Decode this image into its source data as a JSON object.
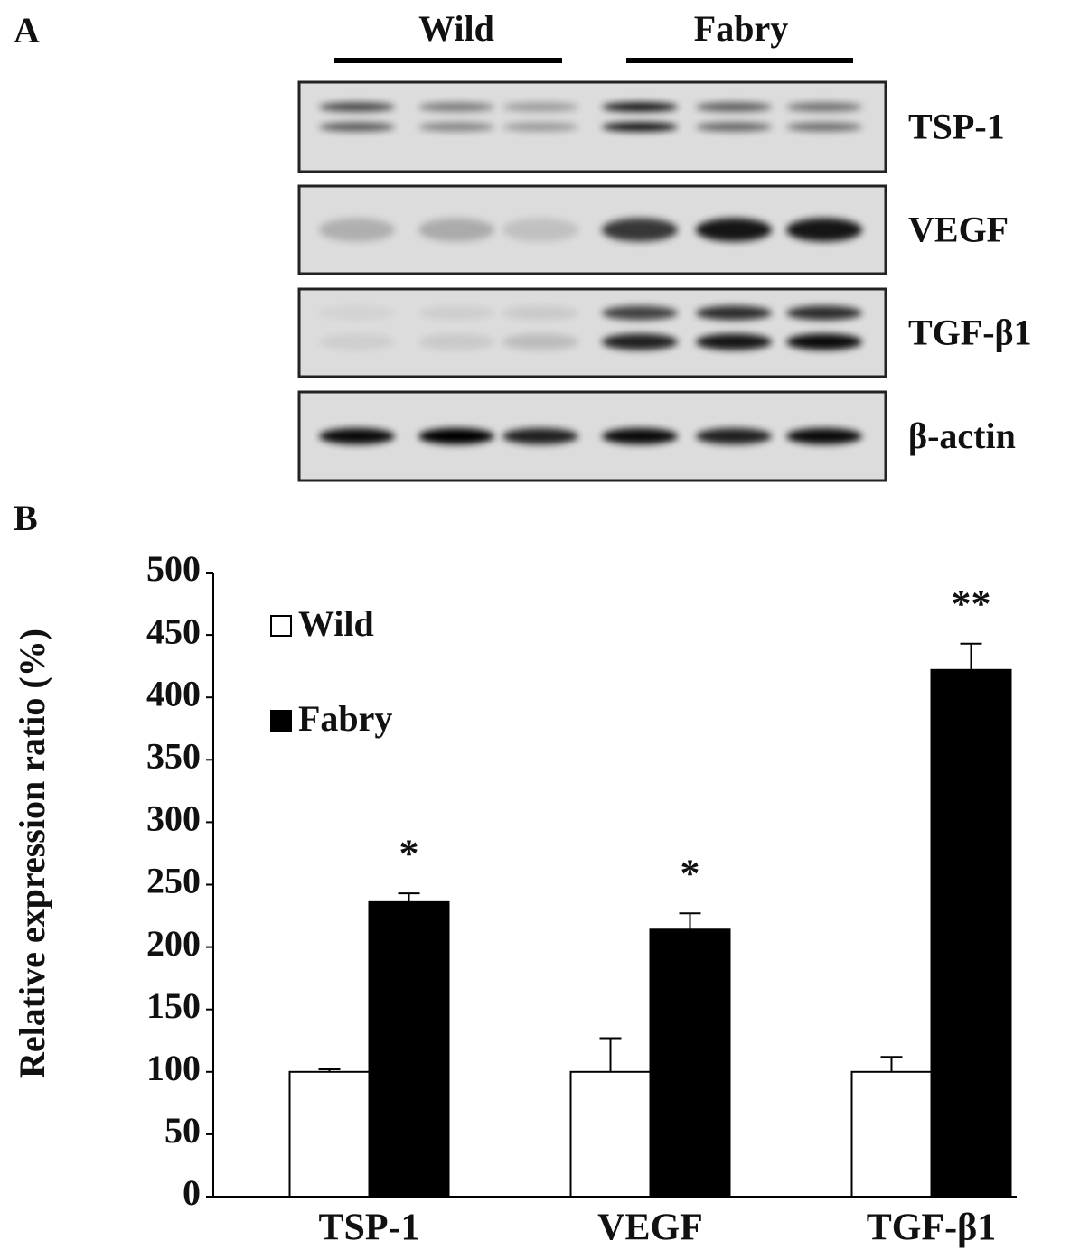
{
  "panel_a": {
    "label": "A",
    "groups": [
      "Wild",
      "Fabry"
    ],
    "rows": [
      "TSP-1",
      "VEGF",
      "TGF-β1",
      "β-actin"
    ]
  },
  "panel_b": {
    "label": "B"
  },
  "chart_data": {
    "type": "bar",
    "y_label": "Relative expression ratio (%)",
    "categories": [
      "TSP-1",
      "VEGF",
      "TGF-β1"
    ],
    "series": [
      {
        "name": "Wild",
        "color": "#ffffff",
        "values": [
          100,
          100,
          100
        ],
        "errors": [
          2,
          27,
          12
        ]
      },
      {
        "name": "Fabry",
        "color": "#000000",
        "values": [
          236,
          214,
          422
        ],
        "errors": [
          7,
          13,
          21
        ]
      }
    ],
    "annotations": [
      "*",
      "*",
      "**"
    ],
    "ylim": [
      0,
      500
    ],
    "yticks": [
      0,
      50,
      100,
      150,
      200,
      250,
      300,
      350,
      400,
      450,
      500
    ],
    "grid": false,
    "legend": "upper left"
  }
}
